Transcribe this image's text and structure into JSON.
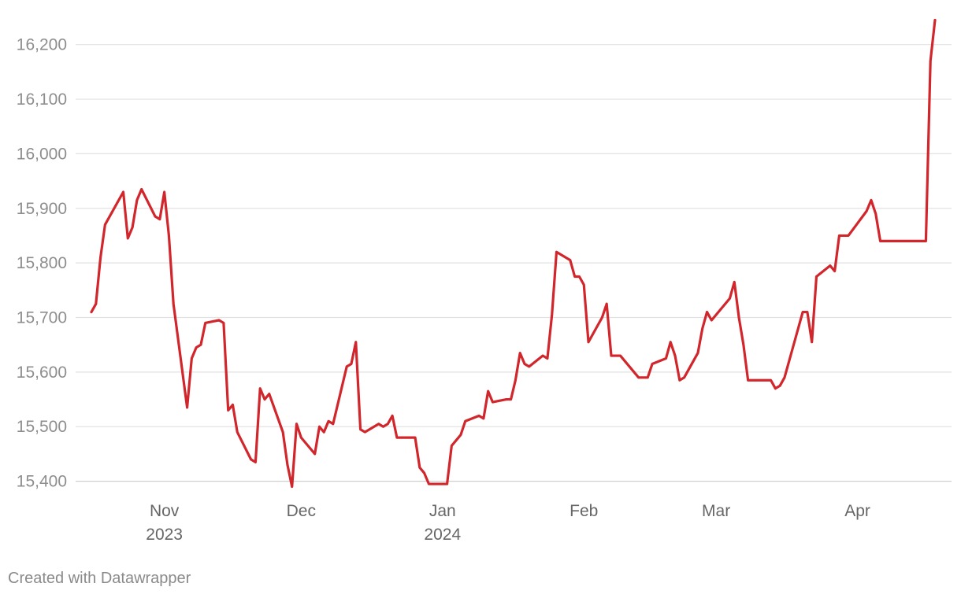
{
  "chart_data": {
    "type": "line",
    "title": "",
    "xlabel": "",
    "ylabel": "",
    "ylim": [
      15385,
      16250
    ],
    "y_ticks": [
      15400,
      15500,
      15600,
      15700,
      15800,
      15900,
      16000,
      16100,
      16200
    ],
    "y_tick_labels": [
      "15,400",
      "15,500",
      "15,600",
      "15,700",
      "15,800",
      "15,900",
      "16,000",
      "16,100",
      "16,200"
    ],
    "x_range": [
      "2023-10-16",
      "2024-04-18"
    ],
    "x_ticks": [
      {
        "date": "2023-11-01",
        "label": "Nov",
        "sublabel": "2023"
      },
      {
        "date": "2023-12-01",
        "label": "Dec",
        "sublabel": ""
      },
      {
        "date": "2024-01-01",
        "label": "Jan",
        "sublabel": "2024"
      },
      {
        "date": "2024-02-01",
        "label": "Feb",
        "sublabel": ""
      },
      {
        "date": "2024-03-01",
        "label": "Mar",
        "sublabel": ""
      },
      {
        "date": "2024-04-01",
        "label": "Apr",
        "sublabel": ""
      }
    ],
    "grid": true,
    "legend": "none",
    "series": [
      {
        "color": "#d1262b",
        "points": [
          [
            "2023-10-16",
            15710
          ],
          [
            "2023-10-17",
            15725
          ],
          [
            "2023-10-18",
            15810
          ],
          [
            "2023-10-19",
            15870
          ],
          [
            "2023-10-23",
            15930
          ],
          [
            "2023-10-24",
            15845
          ],
          [
            "2023-10-25",
            15865
          ],
          [
            "2023-10-26",
            15915
          ],
          [
            "2023-10-27",
            15935
          ],
          [
            "2023-10-30",
            15885
          ],
          [
            "2023-10-31",
            15880
          ],
          [
            "2023-11-01",
            15930
          ],
          [
            "2023-11-02",
            15850
          ],
          [
            "2023-11-03",
            15725
          ],
          [
            "2023-11-06",
            15535
          ],
          [
            "2023-11-07",
            15625
          ],
          [
            "2023-11-08",
            15645
          ],
          [
            "2023-11-09",
            15650
          ],
          [
            "2023-11-10",
            15690
          ],
          [
            "2023-11-13",
            15695
          ],
          [
            "2023-11-14",
            15690
          ],
          [
            "2023-11-15",
            15530
          ],
          [
            "2023-11-16",
            15540
          ],
          [
            "2023-11-17",
            15490
          ],
          [
            "2023-11-20",
            15440
          ],
          [
            "2023-11-21",
            15435
          ],
          [
            "2023-11-22",
            15570
          ],
          [
            "2023-11-23",
            15550
          ],
          [
            "2023-11-24",
            15560
          ],
          [
            "2023-11-27",
            15490
          ],
          [
            "2023-11-28",
            15430
          ],
          [
            "2023-11-29",
            15390
          ],
          [
            "2023-11-30",
            15505
          ],
          [
            "2023-12-01",
            15480
          ],
          [
            "2023-12-04",
            15450
          ],
          [
            "2023-12-05",
            15500
          ],
          [
            "2023-12-06",
            15490
          ],
          [
            "2023-12-07",
            15510
          ],
          [
            "2023-12-08",
            15505
          ],
          [
            "2023-12-11",
            15610
          ],
          [
            "2023-12-12",
            15615
          ],
          [
            "2023-12-13",
            15655
          ],
          [
            "2023-12-14",
            15495
          ],
          [
            "2023-12-15",
            15490
          ],
          [
            "2023-12-18",
            15505
          ],
          [
            "2023-12-19",
            15500
          ],
          [
            "2023-12-20",
            15505
          ],
          [
            "2023-12-21",
            15520
          ],
          [
            "2023-12-22",
            15480
          ],
          [
            "2023-12-26",
            15480
          ],
          [
            "2023-12-27",
            15425
          ],
          [
            "2023-12-28",
            15415
          ],
          [
            "2023-12-29",
            15395
          ],
          [
            "2024-01-02",
            15395
          ],
          [
            "2024-01-03",
            15465
          ],
          [
            "2024-01-04",
            15475
          ],
          [
            "2024-01-05",
            15485
          ],
          [
            "2024-01-06",
            15510
          ],
          [
            "2024-01-09",
            15520
          ],
          [
            "2024-01-10",
            15515
          ],
          [
            "2024-01-11",
            15565
          ],
          [
            "2024-01-12",
            15545
          ],
          [
            "2024-01-15",
            15550
          ],
          [
            "2024-01-16",
            15550
          ],
          [
            "2024-01-17",
            15585
          ],
          [
            "2024-01-18",
            15635
          ],
          [
            "2024-01-19",
            15615
          ],
          [
            "2024-01-20",
            15610
          ],
          [
            "2024-01-23",
            15630
          ],
          [
            "2024-01-24",
            15625
          ],
          [
            "2024-01-25",
            15705
          ],
          [
            "2024-01-26",
            15820
          ],
          [
            "2024-01-29",
            15805
          ],
          [
            "2024-01-30",
            15775
          ],
          [
            "2024-01-31",
            15775
          ],
          [
            "2024-02-01",
            15760
          ],
          [
            "2024-02-02",
            15655
          ],
          [
            "2024-02-05",
            15700
          ],
          [
            "2024-02-06",
            15725
          ],
          [
            "2024-02-07",
            15630
          ],
          [
            "2024-02-09",
            15630
          ],
          [
            "2024-02-13",
            15590
          ],
          [
            "2024-02-15",
            15590
          ],
          [
            "2024-02-16",
            15615
          ],
          [
            "2024-02-19",
            15625
          ],
          [
            "2024-02-20",
            15655
          ],
          [
            "2024-02-21",
            15630
          ],
          [
            "2024-02-22",
            15585
          ],
          [
            "2024-02-23",
            15590
          ],
          [
            "2024-02-26",
            15635
          ],
          [
            "2024-02-27",
            15680
          ],
          [
            "2024-02-28",
            15710
          ],
          [
            "2024-02-29",
            15695
          ],
          [
            "2024-03-04",
            15735
          ],
          [
            "2024-03-05",
            15765
          ],
          [
            "2024-03-06",
            15700
          ],
          [
            "2024-03-07",
            15650
          ],
          [
            "2024-03-08",
            15585
          ],
          [
            "2024-03-13",
            15585
          ],
          [
            "2024-03-14",
            15570
          ],
          [
            "2024-03-15",
            15575
          ],
          [
            "2024-03-16",
            15590
          ],
          [
            "2024-03-19",
            15680
          ],
          [
            "2024-03-20",
            15710
          ],
          [
            "2024-03-21",
            15710
          ],
          [
            "2024-03-22",
            15655
          ],
          [
            "2024-03-23",
            15775
          ],
          [
            "2024-03-26",
            15795
          ],
          [
            "2024-03-27",
            15785
          ],
          [
            "2024-03-28",
            15850
          ],
          [
            "2024-03-30",
            15850
          ],
          [
            "2024-04-03",
            15895
          ],
          [
            "2024-04-04",
            15915
          ],
          [
            "2024-04-05",
            15890
          ],
          [
            "2024-04-06",
            15840
          ],
          [
            "2024-04-16",
            15840
          ],
          [
            "2024-04-17",
            16170
          ],
          [
            "2024-04-18",
            16245
          ]
        ]
      }
    ]
  },
  "footer": {
    "credit": "Created with Datawrapper"
  }
}
